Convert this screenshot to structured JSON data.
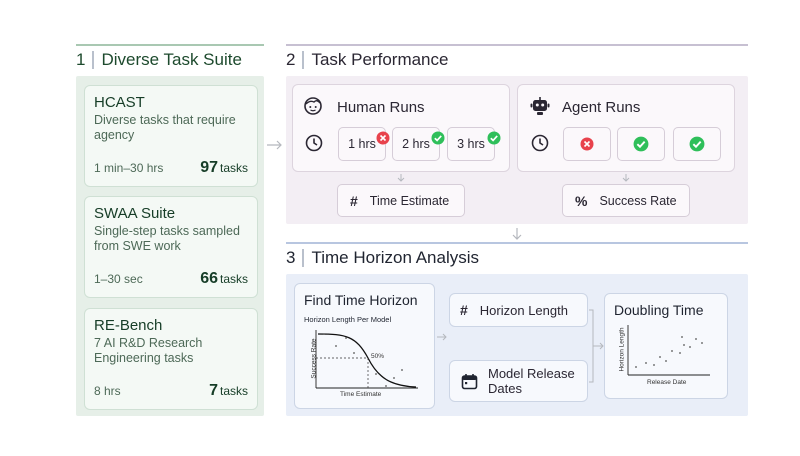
{
  "section1": {
    "number": "1",
    "title": "Diverse Task Suite",
    "cards": [
      {
        "title": "HCAST",
        "desc": "Diverse tasks that require agency",
        "duration": "1 min–30 hrs",
        "count": "97",
        "count_unit": "tasks"
      },
      {
        "title": "SWAA Suite",
        "desc": "Single-step tasks sampled from SWE work",
        "duration": "1–30 sec",
        "count": "66",
        "count_unit": "tasks"
      },
      {
        "title": "RE-Bench",
        "desc": "7 AI R&D Research Engineering tasks",
        "duration": "8 hrs",
        "count": "7",
        "count_unit": "tasks"
      }
    ]
  },
  "section2": {
    "number": "2",
    "title": "Task Performance",
    "human": {
      "title": "Human Runs",
      "icon": "face-icon",
      "runs": [
        {
          "label": "1 hrs",
          "status": "fail"
        },
        {
          "label": "2 hrs",
          "status": "success"
        },
        {
          "label": "3 hrs",
          "status": "success"
        }
      ],
      "output_symbol": "#",
      "output_label": "Time Estimate"
    },
    "agent": {
      "title": "Agent Runs",
      "icon": "robot-icon",
      "runs": [
        {
          "status": "fail"
        },
        {
          "status": "success"
        },
        {
          "status": "success"
        }
      ],
      "output_symbol": "%",
      "output_label": "Success Rate"
    }
  },
  "section3": {
    "number": "3",
    "title": "Time Horizon Analysis",
    "find": {
      "title": "Find Time Horizon",
      "subtitle": "Horizon Length Per Model",
      "ylabel": "Success Rate",
      "xlabel": "Time Estimate",
      "marker": "50%"
    },
    "horizon_symbol": "#",
    "horizon_label": "Horizon Length",
    "release_label": "Model Release Dates",
    "doubling": {
      "title": "Doubling Time",
      "ylabel": "Horizon Length",
      "xlabel": "Release Date"
    }
  },
  "colors": {
    "s1_bg": "#e6efe8",
    "s2_bg": "#f3eef4",
    "s3_bg": "#e9eef8",
    "success": "#2fbf5a",
    "fail": "#e8424c"
  }
}
